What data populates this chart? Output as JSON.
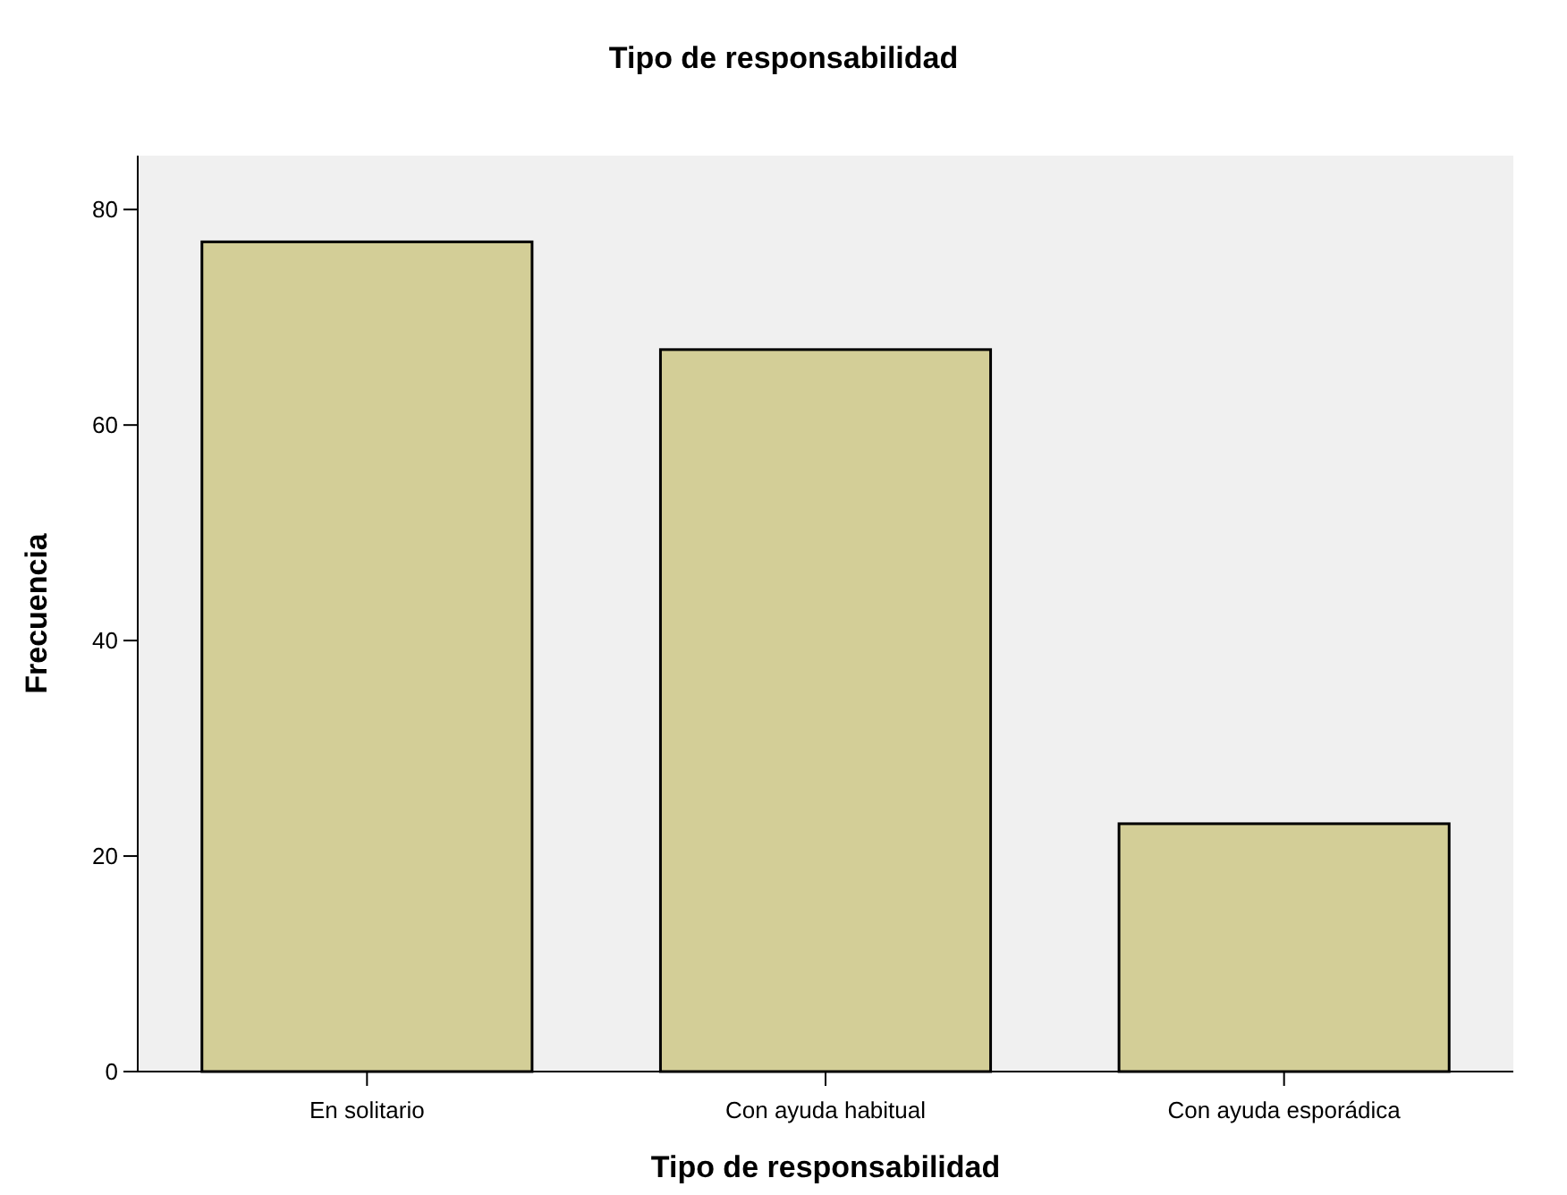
{
  "chart_data": {
    "type": "bar",
    "title": "Tipo de responsabilidad",
    "xlabel": "Tipo de responsabilidad",
    "ylabel": "Frecuencia",
    "categories": [
      "En solitario",
      "Con ayuda habitual",
      "Con ayuda esporádica"
    ],
    "values": [
      77,
      67,
      23
    ],
    "color": "#d3ce97",
    "ylim": [
      0,
      85
    ],
    "yticks": [
      0,
      20,
      40,
      60,
      80
    ],
    "grid": false
  }
}
